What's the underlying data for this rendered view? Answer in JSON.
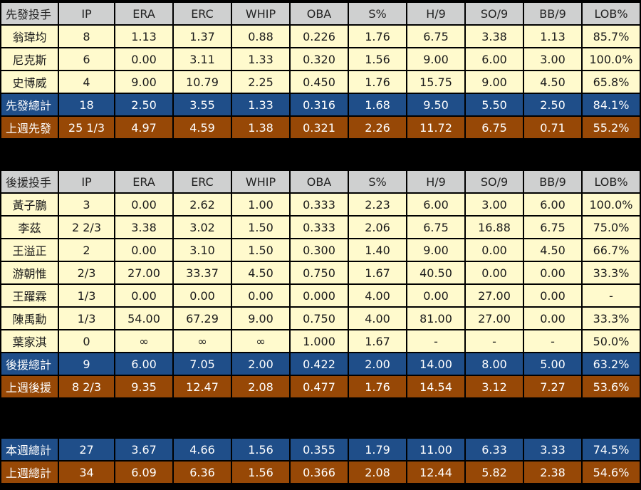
{
  "columns": [
    "IP",
    "ERA",
    "ERC",
    "WHIP",
    "OBA",
    "S%",
    "H/9",
    "SO/9",
    "BB/9",
    "LOB%"
  ],
  "starters": {
    "header_label": "先發投手",
    "rows": [
      {
        "name": "翁瑋均",
        "values": [
          "8",
          "1.13",
          "1.37",
          "0.88",
          "0.226",
          "1.76",
          "6.75",
          "3.38",
          "1.13",
          "85.7%"
        ]
      },
      {
        "name": "尼克斯",
        "values": [
          "6",
          "0.00",
          "3.11",
          "1.33",
          "0.320",
          "1.56",
          "9.00",
          "6.00",
          "3.00",
          "100.0%"
        ]
      },
      {
        "name": "史博威",
        "values": [
          "4",
          "9.00",
          "10.79",
          "2.25",
          "0.450",
          "1.76",
          "15.75",
          "9.00",
          "4.50",
          "65.8%"
        ]
      }
    ],
    "total": {
      "name": "先發總計",
      "values": [
        "18",
        "2.50",
        "3.55",
        "1.33",
        "0.316",
        "1.68",
        "9.50",
        "5.50",
        "2.50",
        "84.1%"
      ]
    },
    "last_week": {
      "name": "上週先發",
      "values": [
        "25 1/3",
        "4.97",
        "4.59",
        "1.38",
        "0.321",
        "2.26",
        "11.72",
        "6.75",
        "0.71",
        "55.2%"
      ]
    }
  },
  "relievers": {
    "header_label": "後援投手",
    "rows": [
      {
        "name": "黃子鵬",
        "values": [
          "3",
          "0.00",
          "2.62",
          "1.00",
          "0.333",
          "2.23",
          "6.00",
          "3.00",
          "6.00",
          "100.0%"
        ]
      },
      {
        "name": "李茲",
        "values": [
          "2 2/3",
          "3.38",
          "3.02",
          "1.50",
          "0.333",
          "2.06",
          "6.75",
          "16.88",
          "6.75",
          "75.0%"
        ]
      },
      {
        "name": "王溢正",
        "values": [
          "2",
          "0.00",
          "3.10",
          "1.50",
          "0.300",
          "1.40",
          "9.00",
          "0.00",
          "4.50",
          "66.7%"
        ]
      },
      {
        "name": "游朝惟",
        "values": [
          "2/3",
          "27.00",
          "33.37",
          "4.50",
          "0.750",
          "1.67",
          "40.50",
          "0.00",
          "0.00",
          "33.3%"
        ]
      },
      {
        "name": "王躍霖",
        "values": [
          "1/3",
          "0.00",
          "0.00",
          "0.00",
          "0.000",
          "4.00",
          "0.00",
          "27.00",
          "0.00",
          "-"
        ]
      },
      {
        "name": "陳禹勳",
        "values": [
          "1/3",
          "54.00",
          "67.29",
          "9.00",
          "0.750",
          "4.00",
          "81.00",
          "27.00",
          "0.00",
          "33.3%"
        ]
      },
      {
        "name": "葉家淇",
        "values": [
          "0",
          "∞",
          "∞",
          "∞",
          "1.000",
          "1.67",
          "-",
          "-",
          "-",
          "50.0%"
        ]
      }
    ],
    "total": {
      "name": "後援總計",
      "values": [
        "9",
        "6.00",
        "7.05",
        "2.00",
        "0.422",
        "2.00",
        "14.00",
        "8.00",
        "5.00",
        "63.2%"
      ]
    },
    "last_week": {
      "name": "上週後援",
      "values": [
        "8 2/3",
        "9.35",
        "12.47",
        "2.08",
        "0.477",
        "1.76",
        "14.54",
        "3.12",
        "7.27",
        "53.6%"
      ]
    }
  },
  "overall": {
    "this_week": {
      "name": "本週總計",
      "values": [
        "27",
        "3.67",
        "4.66",
        "1.56",
        "0.355",
        "1.79",
        "11.00",
        "6.33",
        "3.33",
        "74.5%"
      ]
    },
    "last_week": {
      "name": "上週總計",
      "values": [
        "34",
        "6.09",
        "6.36",
        "1.56",
        "0.366",
        "2.08",
        "12.44",
        "5.82",
        "2.38",
        "54.6%"
      ]
    }
  }
}
